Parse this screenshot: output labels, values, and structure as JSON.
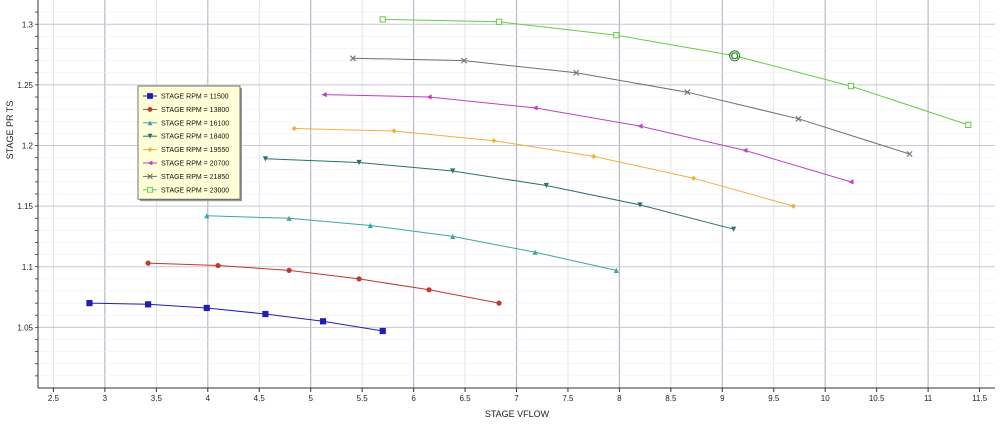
{
  "chart_data": {
    "type": "line",
    "title": "",
    "xlabel": "STAGE VFLOW",
    "ylabel": "STAGE PR TS",
    "xlim": [
      2.35,
      11.65
    ],
    "ylim": [
      1.0,
      1.32
    ],
    "grid": true,
    "legend_position": "upper-left",
    "x_ticks": [
      "2.5",
      "3",
      "3.5",
      "4",
      "4.5",
      "5",
      "5.5",
      "6",
      "6.5",
      "7",
      "7.5",
      "8",
      "8.5",
      "9",
      "9.5",
      "10",
      "10.5",
      "11",
      "11.5"
    ],
    "x_tick_values": [
      2.5,
      3,
      3.5,
      4,
      4.5,
      5,
      5.5,
      6,
      6.5,
      7,
      7.5,
      8,
      8.5,
      9,
      9.5,
      10,
      10.5,
      11,
      11.5
    ],
    "y_ticks": [
      "1.05",
      "1.1",
      "1.15",
      "1.2",
      "1.25",
      "1.3"
    ],
    "y_tick_values": [
      1.05,
      1.1,
      1.15,
      1.2,
      1.25,
      1.3
    ],
    "highlight_point": {
      "x": 9.12,
      "y": 1.274
    },
    "series": [
      {
        "name": "STAGE RPM = 11500",
        "color": "#1f1fb4",
        "marker": "square",
        "x": [
          2.85,
          3.42,
          3.99,
          4.56,
          5.12,
          5.7
        ],
        "y": [
          1.07,
          1.069,
          1.066,
          1.061,
          1.055,
          1.047
        ]
      },
      {
        "name": "STAGE RPM = 13800",
        "color": "#c0392b",
        "marker": "circle",
        "x": [
          3.42,
          4.1,
          4.79,
          5.47,
          6.15,
          6.83
        ],
        "y": [
          1.103,
          1.101,
          1.097,
          1.09,
          1.081,
          1.07
        ]
      },
      {
        "name": "STAGE RPM = 16100",
        "color": "#3aa6a6",
        "marker": "triangle-up",
        "x": [
          3.99,
          4.79,
          5.58,
          6.38,
          7.18,
          7.97
        ],
        "y": [
          1.142,
          1.14,
          1.134,
          1.125,
          1.112,
          1.097
        ]
      },
      {
        "name": "STAGE RPM = 18400",
        "color": "#2f6f6f",
        "marker": "triangle-down",
        "x": [
          4.56,
          5.47,
          6.38,
          7.29,
          8.2,
          9.11
        ],
        "y": [
          1.189,
          1.186,
          1.179,
          1.167,
          1.151,
          1.131
        ]
      },
      {
        "name": "STAGE RPM = 19550",
        "color": "#f0b040",
        "marker": "diamond",
        "x": [
          4.84,
          5.81,
          6.78,
          7.75,
          8.72,
          9.69
        ],
        "y": [
          1.214,
          1.212,
          1.204,
          1.191,
          1.173,
          1.15
        ]
      },
      {
        "name": "STAGE RPM = 20700",
        "color": "#c040c0",
        "marker": "triangle-left",
        "x": [
          5.13,
          6.15,
          7.18,
          8.2,
          9.22,
          10.25
        ],
        "y": [
          1.242,
          1.24,
          1.231,
          1.216,
          1.196,
          1.17
        ]
      },
      {
        "name": "STAGE RPM = 21850",
        "color": "#707070",
        "marker": "x",
        "x": [
          5.41,
          6.49,
          7.58,
          8.66,
          9.74,
          10.82
        ],
        "y": [
          1.272,
          1.27,
          1.26,
          1.244,
          1.222,
          1.193
        ]
      },
      {
        "name": "STAGE RPM = 23000",
        "color": "#66cc44",
        "marker": "open-square",
        "x": [
          5.7,
          6.83,
          7.97,
          9.12,
          10.25,
          11.39
        ],
        "y": [
          1.304,
          1.302,
          1.291,
          1.274,
          1.249,
          1.217
        ]
      }
    ]
  }
}
